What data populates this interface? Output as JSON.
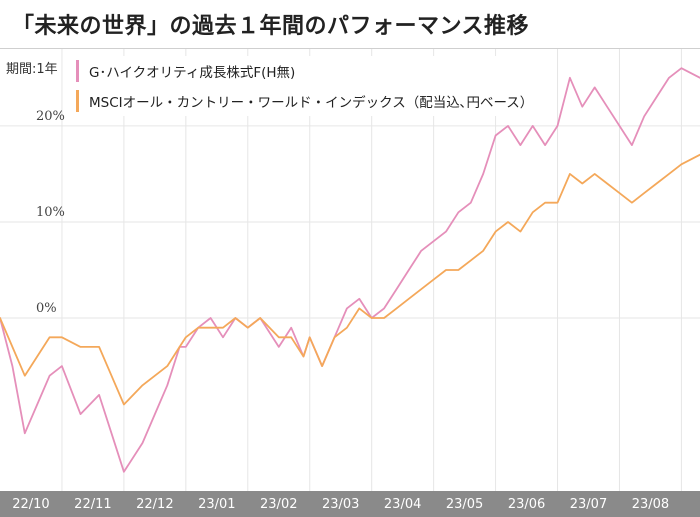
{
  "title": "「未来の世界」の過去１年間のパフォーマンス推移",
  "period_label": "期間:1年",
  "legend": [
    {
      "label": "G･ハイクオリティ成長株式F(H無)",
      "color": "#e58fba"
    },
    {
      "label": "MSCIオール・カントリー・ワールド・インデックス（配当込､円ベース）",
      "color": "#f4a85a"
    }
  ],
  "chart_data": {
    "type": "line",
    "title": "「未来の世界」の過去１年間のパフォーマンス推移",
    "xlabel": "",
    "ylabel": "",
    "ylim": [
      -18,
      28
    ],
    "y_ticks": [
      {
        "value": 20,
        "label": "20%"
      },
      {
        "value": 10,
        "label": "10%"
      },
      {
        "value": 0,
        "label": "0%"
      }
    ],
    "x_labels": [
      "22/10",
      "22/11",
      "22/12",
      "23/01",
      "23/02",
      "23/03",
      "23/04",
      "23/05",
      "23/06",
      "23/07",
      "23/08"
    ],
    "x_range": [
      0,
      11.3
    ],
    "grid": true,
    "legend_position": "top-left",
    "series": [
      {
        "name": "G･ハイクオリティ成長株式F(H無)",
        "color": "#e58fba",
        "x": [
          0,
          0.2,
          0.4,
          0.6,
          0.8,
          1.0,
          1.3,
          1.6,
          1.8,
          2.0,
          2.3,
          2.5,
          2.7,
          2.9,
          3.0,
          3.2,
          3.4,
          3.6,
          3.8,
          4.0,
          4.2,
          4.5,
          4.7,
          4.9,
          5.0,
          5.2,
          5.4,
          5.6,
          5.8,
          6.0,
          6.2,
          6.4,
          6.6,
          6.8,
          7.0,
          7.2,
          7.4,
          7.6,
          7.8,
          8.0,
          8.2,
          8.4,
          8.6,
          8.8,
          9.0,
          9.2,
          9.4,
          9.6,
          9.8,
          10.0,
          10.2,
          10.4,
          10.6,
          10.8,
          11.0,
          11.3
        ],
        "values": [
          0,
          -5,
          -12,
          -9,
          -6,
          -5,
          -10,
          -8,
          -12,
          -16,
          -13,
          -10,
          -7,
          -3,
          -3,
          -1,
          0,
          -2,
          0,
          -1,
          0,
          -3,
          -1,
          -4,
          -2,
          -5,
          -2,
          1,
          2,
          0,
          1,
          3,
          5,
          7,
          8,
          9,
          11,
          12,
          15,
          19,
          20,
          18,
          20,
          18,
          20,
          25,
          22,
          24,
          22,
          20,
          18,
          21,
          23,
          25,
          26,
          25
        ]
      },
      {
        "name": "MSCIオール・カントリー・ワールド・インデックス（配当込､円ベース）",
        "color": "#f4a85a",
        "x": [
          0,
          0.2,
          0.4,
          0.6,
          0.8,
          1.0,
          1.3,
          1.6,
          1.8,
          2.0,
          2.3,
          2.5,
          2.7,
          2.9,
          3.0,
          3.2,
          3.4,
          3.6,
          3.8,
          4.0,
          4.2,
          4.5,
          4.7,
          4.9,
          5.0,
          5.2,
          5.4,
          5.6,
          5.8,
          6.0,
          6.2,
          6.4,
          6.6,
          6.8,
          7.0,
          7.2,
          7.4,
          7.6,
          7.8,
          8.0,
          8.2,
          8.4,
          8.6,
          8.8,
          9.0,
          9.2,
          9.4,
          9.6,
          9.8,
          10.0,
          10.2,
          10.4,
          10.6,
          10.8,
          11.0,
          11.3
        ],
        "values": [
          0,
          -3,
          -6,
          -4,
          -2,
          -2,
          -3,
          -3,
          -6,
          -9,
          -7,
          -6,
          -5,
          -3,
          -2,
          -1,
          -1,
          -1,
          0,
          -1,
          0,
          -2,
          -2,
          -4,
          -2,
          -5,
          -2,
          -1,
          1,
          0,
          0,
          1,
          2,
          3,
          4,
          5,
          5,
          6,
          7,
          9,
          10,
          9,
          11,
          12,
          12,
          15,
          14,
          15,
          14,
          13,
          12,
          13,
          14,
          15,
          16,
          17
        ]
      }
    ]
  }
}
